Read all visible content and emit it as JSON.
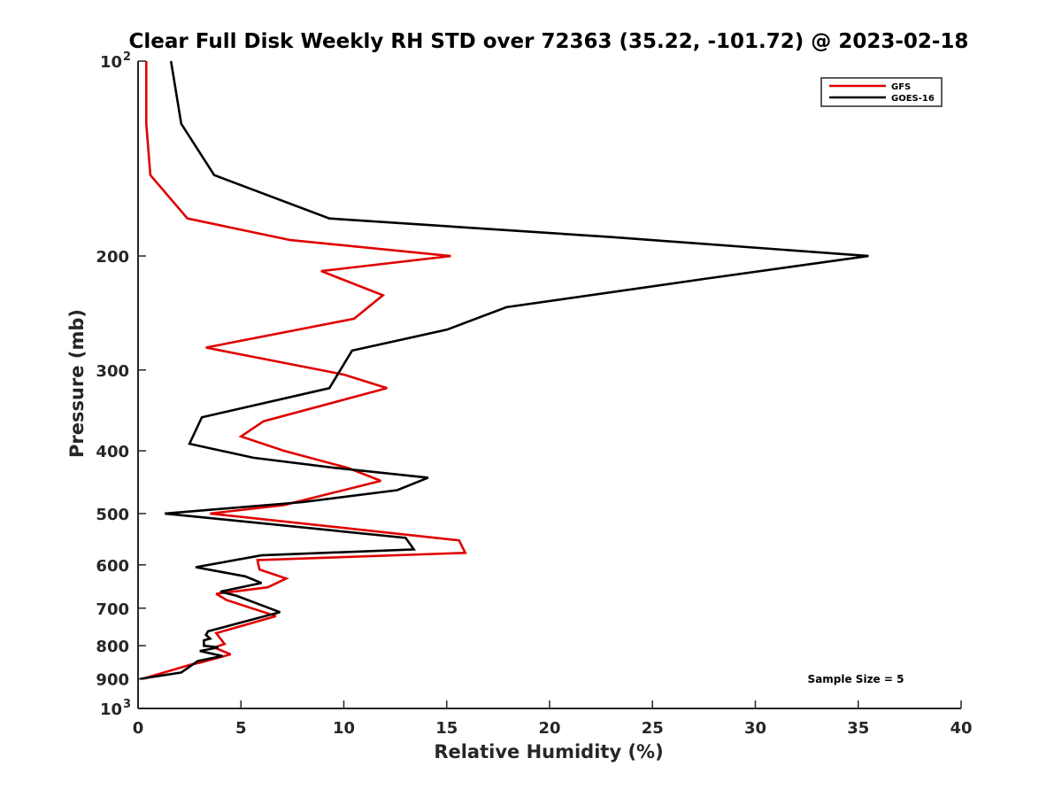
{
  "chart_data": {
    "type": "line",
    "title": "Clear Full Disk Weekly RH STD over 72363 (35.22, -101.72) @ 2023-02-18",
    "xlabel": "Relative Humidity (%)",
    "ylabel": "Pressure (mb)",
    "xlim": [
      0,
      40
    ],
    "ylim": [
      100,
      1000
    ],
    "y_scale": "log",
    "y_reversed": true,
    "x_ticks": [
      0,
      5,
      10,
      15,
      20,
      25,
      30,
      35,
      40
    ],
    "y_ticks": [
      {
        "value": 100,
        "label": "10",
        "sup": "2"
      },
      {
        "value": 200,
        "label": "200"
      },
      {
        "value": 300,
        "label": "300"
      },
      {
        "value": 400,
        "label": "400"
      },
      {
        "value": 500,
        "label": "500"
      },
      {
        "value": 600,
        "label": "600"
      },
      {
        "value": 700,
        "label": "700"
      },
      {
        "value": 800,
        "label": "800"
      },
      {
        "value": 900,
        "label": "900"
      },
      {
        "value": 1000,
        "label": "10",
        "sup": "3"
      }
    ],
    "legend": {
      "location": "top-right",
      "entries": [
        "GFS",
        "GOES-16"
      ]
    },
    "annotation": "Sample Size = 5",
    "series": [
      {
        "name": "GFS",
        "color": "#e00000",
        "points": [
          [
            0.4,
            100
          ],
          [
            0.4,
            125
          ],
          [
            0.6,
            150
          ],
          [
            2.4,
            175
          ],
          [
            7.4,
            189
          ],
          [
            15.2,
            200
          ],
          [
            8.9,
            211
          ],
          [
            11.9,
            230
          ],
          [
            10.5,
            250
          ],
          [
            3.3,
            277
          ],
          [
            10.0,
            305
          ],
          [
            12.1,
            320
          ],
          [
            6.1,
            360
          ],
          [
            5.0,
            380
          ],
          [
            7.1,
            400
          ],
          [
            10.2,
            425
          ],
          [
            11.8,
            445
          ],
          [
            9.4,
            465
          ],
          [
            7.1,
            485
          ],
          [
            3.5,
            500
          ],
          [
            15.6,
            550
          ],
          [
            15.9,
            575
          ],
          [
            5.8,
            590
          ],
          [
            5.9,
            610
          ],
          [
            7.2,
            630
          ],
          [
            6.3,
            650
          ],
          [
            3.8,
            665
          ],
          [
            4.3,
            680
          ],
          [
            6.7,
            720
          ],
          [
            3.8,
            765
          ],
          [
            4.0,
            780
          ],
          [
            4.2,
            795
          ],
          [
            3.7,
            805
          ],
          [
            4.5,
            825
          ],
          [
            3.0,
            850
          ],
          [
            2.6,
            855
          ],
          [
            1.8,
            870
          ],
          [
            0.2,
            900
          ]
        ]
      },
      {
        "name": "GOES-16",
        "color": "#000000",
        "points": [
          [
            1.6,
            100
          ],
          [
            2.1,
            125
          ],
          [
            3.7,
            150
          ],
          [
            9.3,
            175
          ],
          [
            23.0,
            187
          ],
          [
            35.5,
            200
          ],
          [
            27.5,
            217
          ],
          [
            17.9,
            240
          ],
          [
            15.0,
            260
          ],
          [
            10.4,
            280
          ],
          [
            9.3,
            320
          ],
          [
            3.1,
            355
          ],
          [
            2.5,
            390
          ],
          [
            5.6,
            410
          ],
          [
            9.6,
            425
          ],
          [
            14.1,
            440
          ],
          [
            12.6,
            460
          ],
          [
            8.0,
            480
          ],
          [
            1.3,
            500
          ],
          [
            13.0,
            545
          ],
          [
            13.4,
            568
          ],
          [
            6.0,
            580
          ],
          [
            2.8,
            605
          ],
          [
            5.2,
            625
          ],
          [
            6.0,
            640
          ],
          [
            4.0,
            660
          ],
          [
            4.8,
            670
          ],
          [
            6.9,
            710
          ],
          [
            3.4,
            760
          ],
          [
            3.3,
            770
          ],
          [
            3.5,
            780
          ],
          [
            3.2,
            785
          ],
          [
            3.2,
            800
          ],
          [
            3.9,
            805
          ],
          [
            3.0,
            815
          ],
          [
            4.1,
            830
          ],
          [
            2.9,
            845
          ],
          [
            2.1,
            880
          ],
          [
            0.1,
            900
          ]
        ]
      }
    ]
  }
}
